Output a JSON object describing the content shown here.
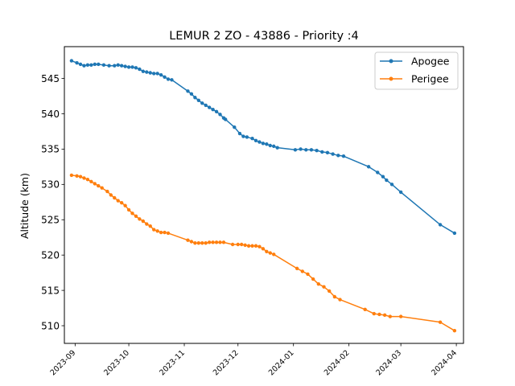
{
  "chart_data": {
    "type": "line",
    "title": "LEMUR 2 ZO - 43886 - Priority :4",
    "xlabel": "",
    "ylabel": "Altitude (km)",
    "x_ticks": [
      "2023-09",
      "2023-10",
      "2023-11",
      "2023-12",
      "2024-01",
      "2024-02",
      "2024-03",
      "2024-04"
    ],
    "y_ticks": [
      510,
      515,
      520,
      525,
      530,
      535,
      540,
      545
    ],
    "xlim": [
      "2023-08-26",
      "2024-04-05"
    ],
    "ylim": [
      507.5,
      549.5
    ],
    "legend_position": "upper right",
    "grid": false,
    "series": [
      {
        "name": "Apogee",
        "color": "#1f77b4",
        "points": [
          [
            "2023-08-30",
            547.5
          ],
          [
            "2023-09-02",
            547.2
          ],
          [
            "2023-09-04",
            547.0
          ],
          [
            "2023-09-06",
            546.8
          ],
          [
            "2023-09-08",
            546.9
          ],
          [
            "2023-09-10",
            546.9
          ],
          [
            "2023-09-12",
            547.0
          ],
          [
            "2023-09-14",
            547.0
          ],
          [
            "2023-09-17",
            546.9
          ],
          [
            "2023-09-20",
            546.8
          ],
          [
            "2023-09-23",
            546.8
          ],
          [
            "2023-09-25",
            546.9
          ],
          [
            "2023-09-27",
            546.8
          ],
          [
            "2023-09-29",
            546.7
          ],
          [
            "2023-10-01",
            546.6
          ],
          [
            "2023-10-03",
            546.6
          ],
          [
            "2023-10-05",
            546.5
          ],
          [
            "2023-10-07",
            546.3
          ],
          [
            "2023-10-09",
            546.0
          ],
          [
            "2023-10-11",
            545.9
          ],
          [
            "2023-10-13",
            545.8
          ],
          [
            "2023-10-15",
            545.7
          ],
          [
            "2023-10-17",
            545.7
          ],
          [
            "2023-10-19",
            545.5
          ],
          [
            "2023-10-21",
            545.2
          ],
          [
            "2023-10-23",
            544.9
          ],
          [
            "2023-10-25",
            544.8
          ],
          [
            "2023-11-03",
            543.2
          ],
          [
            "2023-11-05",
            542.8
          ],
          [
            "2023-11-07",
            542.3
          ],
          [
            "2023-11-09",
            541.9
          ],
          [
            "2023-11-11",
            541.5
          ],
          [
            "2023-11-13",
            541.2
          ],
          [
            "2023-11-15",
            540.9
          ],
          [
            "2023-11-17",
            540.6
          ],
          [
            "2023-11-19",
            540.3
          ],
          [
            "2023-11-21",
            539.9
          ],
          [
            "2023-11-23",
            539.4
          ],
          [
            "2023-11-24",
            539.2
          ],
          [
            "2023-11-29",
            538.1
          ],
          [
            "2023-12-02",
            537.2
          ],
          [
            "2023-12-04",
            536.8
          ],
          [
            "2023-12-06",
            536.7
          ],
          [
            "2023-12-09",
            536.5
          ],
          [
            "2023-12-11",
            536.2
          ],
          [
            "2023-12-13",
            536.0
          ],
          [
            "2023-12-15",
            535.8
          ],
          [
            "2023-12-17",
            535.7
          ],
          [
            "2023-12-19",
            535.5
          ],
          [
            "2023-12-21",
            535.4
          ],
          [
            "2023-12-23",
            535.2
          ],
          [
            "2024-01-02",
            534.9
          ],
          [
            "2024-01-05",
            535.0
          ],
          [
            "2024-01-08",
            534.9
          ],
          [
            "2024-01-11",
            534.9
          ],
          [
            "2024-01-14",
            534.8
          ],
          [
            "2024-01-17",
            534.6
          ],
          [
            "2024-01-20",
            534.5
          ],
          [
            "2024-01-23",
            534.3
          ],
          [
            "2024-01-26",
            534.1
          ],
          [
            "2024-01-29",
            534.0
          ],
          [
            "2024-02-12",
            532.5
          ],
          [
            "2024-02-17",
            531.7
          ],
          [
            "2024-02-20",
            531.1
          ],
          [
            "2024-02-22",
            530.6
          ],
          [
            "2024-02-25",
            530.0
          ],
          [
            "2024-03-01",
            528.9
          ],
          [
            "2024-03-23",
            524.3
          ],
          [
            "2024-03-31",
            523.1
          ]
        ]
      },
      {
        "name": "Perigee",
        "color": "#ff7f0e",
        "points": [
          [
            "2023-08-30",
            531.3
          ],
          [
            "2023-09-02",
            531.2
          ],
          [
            "2023-09-04",
            531.1
          ],
          [
            "2023-09-06",
            530.9
          ],
          [
            "2023-09-08",
            530.7
          ],
          [
            "2023-09-10",
            530.4
          ],
          [
            "2023-09-12",
            530.1
          ],
          [
            "2023-09-14",
            529.8
          ],
          [
            "2023-09-16",
            529.5
          ],
          [
            "2023-09-19",
            529.0
          ],
          [
            "2023-09-21",
            528.5
          ],
          [
            "2023-09-23",
            528.1
          ],
          [
            "2023-09-25",
            527.7
          ],
          [
            "2023-09-27",
            527.4
          ],
          [
            "2023-09-29",
            527.0
          ],
          [
            "2023-10-01",
            526.4
          ],
          [
            "2023-10-03",
            525.9
          ],
          [
            "2023-10-05",
            525.5
          ],
          [
            "2023-10-07",
            525.1
          ],
          [
            "2023-10-09",
            524.8
          ],
          [
            "2023-10-11",
            524.4
          ],
          [
            "2023-10-13",
            524.1
          ],
          [
            "2023-10-15",
            523.6
          ],
          [
            "2023-10-17",
            523.4
          ],
          [
            "2023-10-19",
            523.2
          ],
          [
            "2023-10-21",
            523.2
          ],
          [
            "2023-10-23",
            523.1
          ],
          [
            "2023-11-03",
            522.1
          ],
          [
            "2023-11-05",
            521.9
          ],
          [
            "2023-11-07",
            521.7
          ],
          [
            "2023-11-09",
            521.7
          ],
          [
            "2023-11-11",
            521.7
          ],
          [
            "2023-11-13",
            521.7
          ],
          [
            "2023-11-15",
            521.8
          ],
          [
            "2023-11-17",
            521.8
          ],
          [
            "2023-11-19",
            521.8
          ],
          [
            "2023-11-21",
            521.8
          ],
          [
            "2023-11-23",
            521.8
          ],
          [
            "2023-11-28",
            521.5
          ],
          [
            "2023-12-01",
            521.5
          ],
          [
            "2023-12-03",
            521.5
          ],
          [
            "2023-12-05",
            521.4
          ],
          [
            "2023-12-07",
            521.3
          ],
          [
            "2023-12-09",
            521.3
          ],
          [
            "2023-12-11",
            521.3
          ],
          [
            "2023-12-13",
            521.2
          ],
          [
            "2023-12-15",
            520.9
          ],
          [
            "2023-12-17",
            520.5
          ],
          [
            "2023-12-19",
            520.3
          ],
          [
            "2023-12-21",
            520.1
          ],
          [
            "2024-01-03",
            518.1
          ],
          [
            "2024-01-06",
            517.7
          ],
          [
            "2024-01-09",
            517.3
          ],
          [
            "2024-01-12",
            516.6
          ],
          [
            "2024-01-15",
            515.9
          ],
          [
            "2024-01-18",
            515.5
          ],
          [
            "2024-01-21",
            514.9
          ],
          [
            "2024-01-24",
            514.1
          ],
          [
            "2024-01-27",
            513.7
          ],
          [
            "2024-02-10",
            512.3
          ],
          [
            "2024-02-15",
            511.7
          ],
          [
            "2024-02-18",
            511.6
          ],
          [
            "2024-02-21",
            511.5
          ],
          [
            "2024-02-24",
            511.3
          ],
          [
            "2024-03-01",
            511.3
          ],
          [
            "2024-03-23",
            510.5
          ],
          [
            "2024-03-31",
            509.3
          ]
        ]
      }
    ]
  }
}
